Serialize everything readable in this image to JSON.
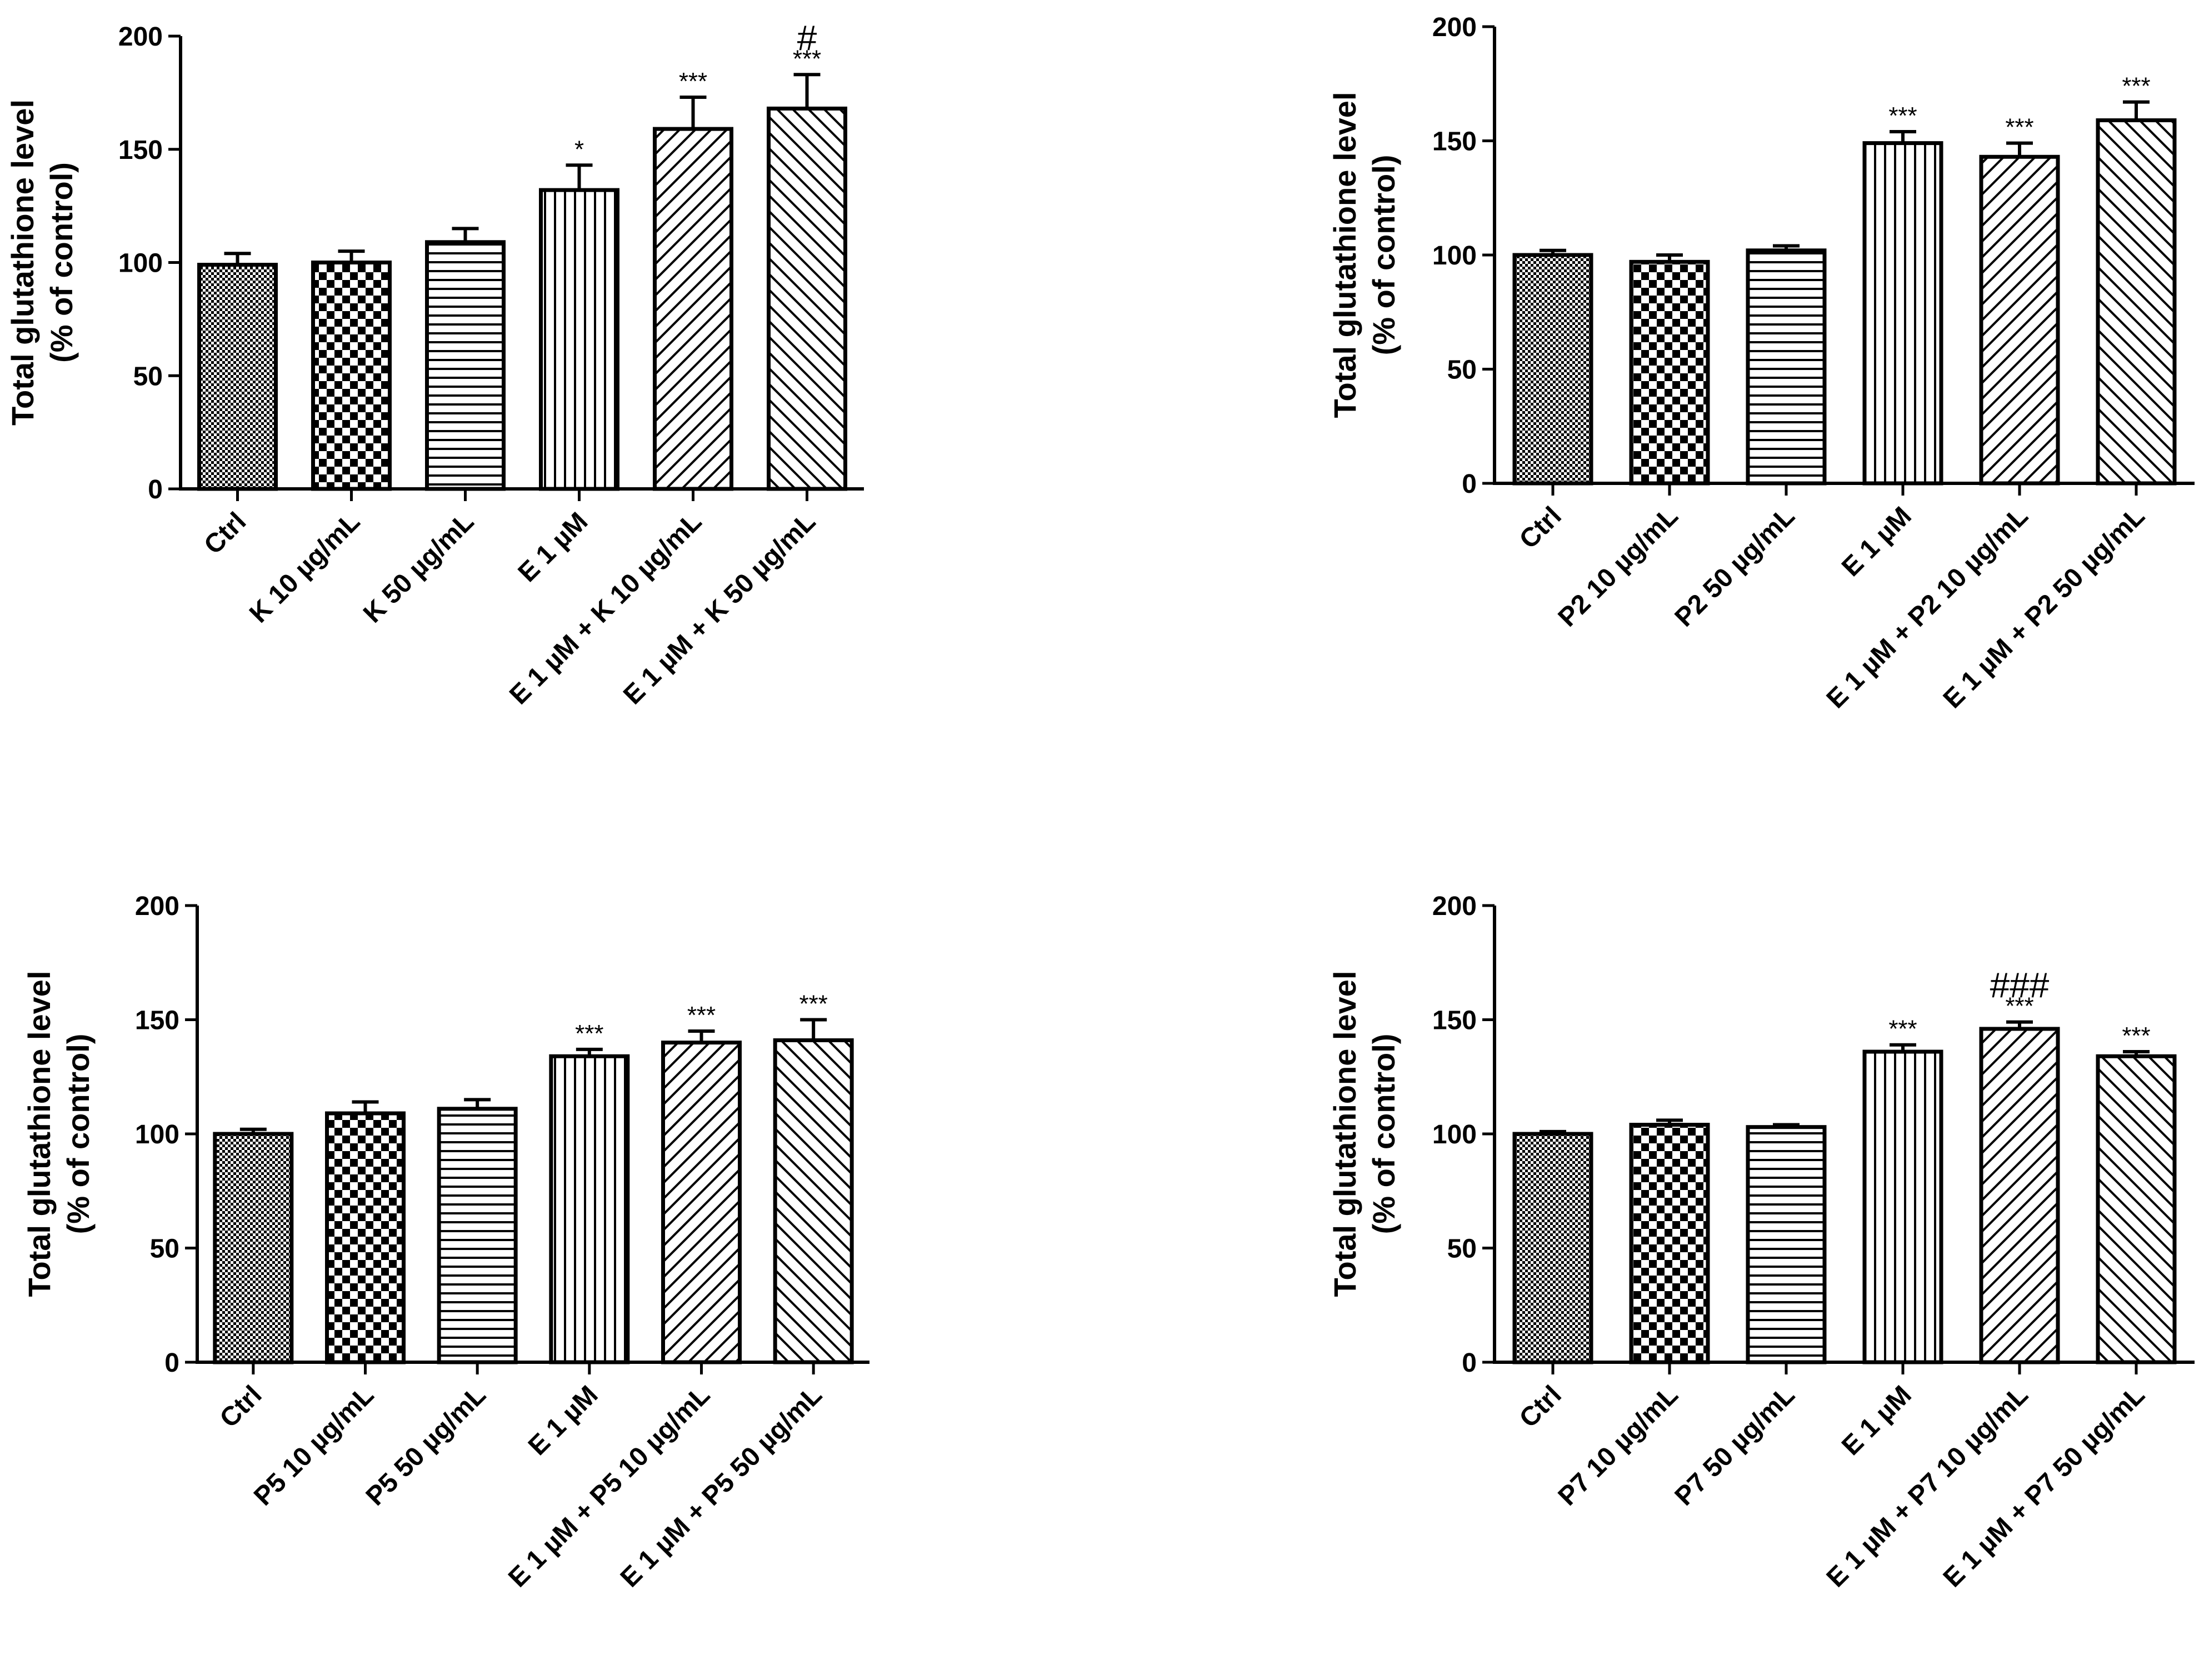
{
  "colors": {
    "ink": "#000000",
    "background": "#ffffff"
  },
  "chart_data": [
    {
      "type": "bar",
      "panel": "top-left",
      "ylabel": "Total glutathione level",
      "ylabel2": "(% of control)",
      "ylim": [
        0,
        200
      ],
      "yticks": [
        "0",
        "50",
        "100",
        "150",
        "200"
      ],
      "categories": [
        "Ctrl",
        "K 10 µg/mL",
        "K 50 µg/mL",
        "E 1 µM",
        "E 1 µM + K 10 µg/mL",
        "E 1 µM + K 50 µg/mL"
      ],
      "values": [
        99,
        100,
        109,
        132,
        159,
        168
      ],
      "errors": [
        5,
        5,
        6,
        11,
        14,
        15
      ],
      "patterns": [
        "dots",
        "checker",
        "hlines",
        "vlines",
        "diag-right",
        "diag-left"
      ],
      "significance": [
        "",
        "",
        "",
        "*",
        "***",
        "***"
      ],
      "hash": [
        "",
        "",
        "",
        "",
        "",
        "#"
      ]
    },
    {
      "type": "bar",
      "panel": "top-right",
      "ylabel": "Total glutathione level",
      "ylabel2": "(% of control)",
      "ylim": [
        0,
        200
      ],
      "yticks": [
        "0",
        "50",
        "100",
        "150",
        "200"
      ],
      "categories": [
        "Ctrl",
        "P2 10 µg/mL",
        "P2 50 µg/mL",
        "E 1 µM",
        "E 1 µM + P2 10 µg/mL",
        "E 1 µM + P2 50 µg/mL"
      ],
      "values": [
        100,
        97,
        102,
        149,
        143,
        159
      ],
      "errors": [
        2,
        3,
        2,
        5,
        6,
        8
      ],
      "patterns": [
        "dots",
        "checker",
        "hlines",
        "vlines",
        "diag-right",
        "diag-left"
      ],
      "significance": [
        "",
        "",
        "",
        "***",
        "***",
        "***"
      ],
      "hash": [
        "",
        "",
        "",
        "",
        "",
        ""
      ]
    },
    {
      "type": "bar",
      "panel": "bottom-left",
      "ylabel": "Total glutathione level",
      "ylabel2": "(% of control)",
      "ylim": [
        0,
        200
      ],
      "yticks": [
        "0",
        "50",
        "100",
        "150",
        "200"
      ],
      "categories": [
        "Ctrl",
        "P5 10 µg/mL",
        "P5 50 µg/mL",
        "E 1 µM",
        "E 1 µM + P5 10 µg/mL",
        "E 1 µM + P5 50 µg/mL"
      ],
      "values": [
        100,
        109,
        111,
        134,
        140,
        141
      ],
      "errors": [
        2,
        5,
        4,
        3,
        5,
        9
      ],
      "patterns": [
        "dots",
        "checker",
        "hlines",
        "vlines",
        "diag-right",
        "diag-left"
      ],
      "significance": [
        "",
        "",
        "",
        "***",
        "***",
        "***"
      ],
      "hash": [
        "",
        "",
        "",
        "",
        "",
        ""
      ]
    },
    {
      "type": "bar",
      "panel": "bottom-right",
      "ylabel": "Total glutathione level",
      "ylabel2": "(% of control)",
      "ylim": [
        0,
        200
      ],
      "yticks": [
        "0",
        "50",
        "100",
        "150",
        "200"
      ],
      "categories": [
        "Ctrl",
        "P7 10 µg/mL",
        "P7 50 µg/mL",
        "E 1 µM",
        "E 1 µM + P7 10 µg/mL",
        "E 1 µM + P7 50 µg/mL"
      ],
      "values": [
        100,
        104,
        103,
        136,
        146,
        134
      ],
      "errors": [
        1,
        2,
        1,
        3,
        3,
        2
      ],
      "patterns": [
        "dots",
        "checker",
        "hlines",
        "vlines",
        "diag-right",
        "diag-left"
      ],
      "significance": [
        "",
        "",
        "",
        "***",
        "***",
        "***"
      ],
      "hash": [
        "",
        "",
        "",
        "",
        "###",
        ""
      ]
    }
  ]
}
